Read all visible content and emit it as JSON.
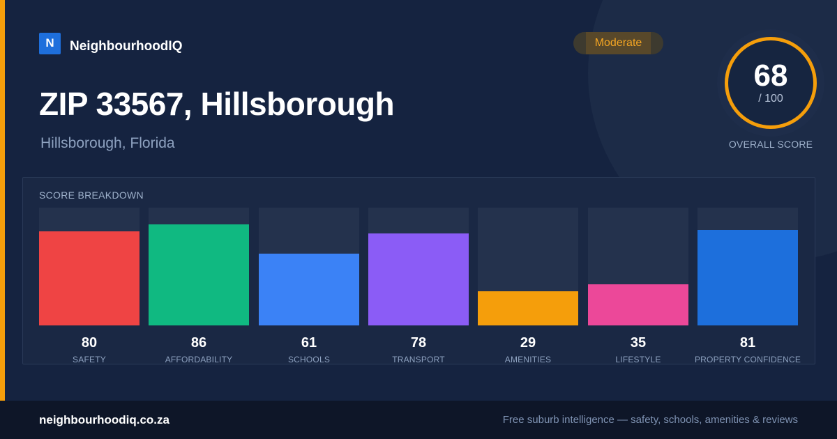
{
  "brand": {
    "logo_letter": "N",
    "name": "NeighbourhoodIQ"
  },
  "header": {
    "title": "ZIP 33567, Hillsborough",
    "subtitle": "Hillsborough, Florida"
  },
  "badge": {
    "label": "Moderate",
    "color": "#f5a623"
  },
  "overall_score": {
    "value": "68",
    "max": "/ 100",
    "caption": "OVERALL SCORE",
    "ring_color": "#f59e0b"
  },
  "breakdown": {
    "heading": "SCORE BREAKDOWN",
    "items": [
      {
        "label": "SAFETY",
        "value": "80",
        "score": 80,
        "color": "#ef4444"
      },
      {
        "label": "AFFORDABILITY",
        "value": "86",
        "score": 86,
        "color": "#10b981"
      },
      {
        "label": "SCHOOLS",
        "value": "61",
        "score": 61,
        "color": "#3b82f6"
      },
      {
        "label": "TRANSPORT",
        "value": "78",
        "score": 78,
        "color": "#8b5cf6"
      },
      {
        "label": "AMENITIES",
        "value": "29",
        "score": 29,
        "color": "#f59e0b"
      },
      {
        "label": "LIFESTYLE",
        "value": "35",
        "score": 35,
        "color": "#ec4899"
      },
      {
        "label": "PROPERTY CONFIDENCE",
        "value": "81",
        "score": 81,
        "color": "#1d6fdc"
      }
    ]
  },
  "footer": {
    "url": "neighbourhoodiq.co.za",
    "tagline": "Free suburb intelligence — safety, schools, amenities & reviews"
  }
}
